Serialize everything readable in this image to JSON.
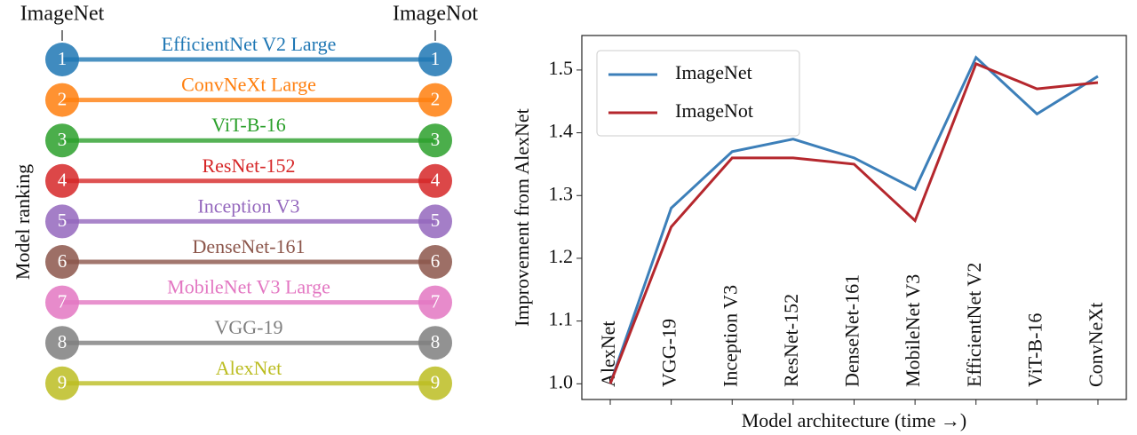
{
  "chart_data": [
    {
      "type": "slope",
      "categories": [
        "ImageNet",
        "ImageNot"
      ],
      "ylabel": "Model ranking",
      "series": [
        {
          "name": "EfficientNet V2 Large",
          "color": "#1f77b4",
          "values": [
            1,
            1
          ]
        },
        {
          "name": "ConvNeXt Large",
          "color": "#ff7f0e",
          "values": [
            2,
            2
          ]
        },
        {
          "name": "ViT-B-16",
          "color": "#2ca02c",
          "values": [
            3,
            3
          ]
        },
        {
          "name": "ResNet-152",
          "color": "#d62728",
          "values": [
            4,
            4
          ]
        },
        {
          "name": "Inception V3",
          "color": "#9467bd",
          "values": [
            5,
            5
          ]
        },
        {
          "name": "DenseNet-161",
          "color": "#8c564b",
          "values": [
            6,
            6
          ]
        },
        {
          "name": "MobileNet V3 Large",
          "color": "#e377c2",
          "values": [
            7,
            7
          ]
        },
        {
          "name": "VGG-19",
          "color": "#7f7f7f",
          "values": [
            8,
            8
          ]
        },
        {
          "name": "AlexNet",
          "color": "#bcbd22",
          "values": [
            9,
            9
          ]
        }
      ]
    },
    {
      "type": "line",
      "xlabel": "Model architecture (time →)",
      "ylabel": "Improvement from AlexNet",
      "categories": [
        "AlexNet",
        "VGG-19",
        "Inception V3",
        "ResNet-152",
        "DenseNet-161",
        "MobileNet V3",
        "EfficientNet V2",
        "ViT-B-16",
        "ConvNeXt"
      ],
      "series": [
        {
          "name": "ImageNet",
          "color": "#3c7fb9",
          "values": [
            1.0,
            1.28,
            1.37,
            1.39,
            1.36,
            1.31,
            1.52,
            1.43,
            1.49
          ]
        },
        {
          "name": "ImageNot",
          "color": "#b5272d",
          "values": [
            1.0,
            1.25,
            1.36,
            1.36,
            1.35,
            1.26,
            1.51,
            1.47,
            1.48
          ]
        }
      ],
      "ylim": [
        0.975,
        1.555
      ],
      "yticks": [
        {
          "value": 1,
          "label": "1.0"
        },
        1.1,
        1.2,
        1.3,
        1.4,
        1.5
      ],
      "legend": "upper left"
    }
  ]
}
